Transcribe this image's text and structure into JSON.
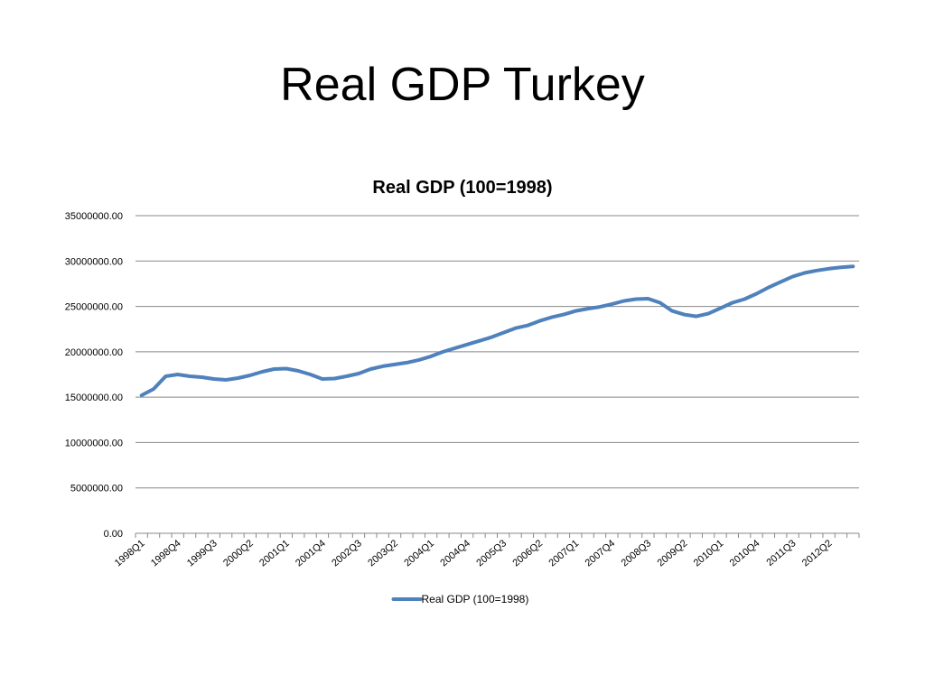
{
  "slide": {
    "title": "Real GDP Turkey"
  },
  "colors": {
    "series": "#4f81bd",
    "grid": "#888888",
    "axis": "#888888"
  },
  "chart_data": {
    "type": "line",
    "title": "Real GDP (100=1998)",
    "xlabel": "",
    "ylabel": "",
    "ylim": [
      0,
      35000000
    ],
    "yticks": [
      0,
      5000000,
      10000000,
      15000000,
      20000000,
      25000000,
      30000000,
      35000000
    ],
    "ytick_labels": [
      "0.00",
      "5000000.00",
      "10000000.00",
      "15000000.00",
      "20000000.00",
      "25000000.00",
      "30000000.00",
      "35000000.00"
    ],
    "grid": true,
    "legend": "bottom",
    "categories": [
      "1998Q1",
      "1998Q2",
      "1998Q3",
      "1998Q4",
      "1999Q1",
      "1999Q2",
      "1999Q3",
      "1999Q4",
      "2000Q1",
      "2000Q2",
      "2000Q3",
      "2000Q4",
      "2001Q1",
      "2001Q2",
      "2001Q3",
      "2001Q4",
      "2002Q1",
      "2002Q2",
      "2002Q3",
      "2002Q4",
      "2003Q1",
      "2003Q2",
      "2003Q3",
      "2003Q4",
      "2004Q1",
      "2004Q2",
      "2004Q3",
      "2004Q4",
      "2005Q1",
      "2005Q2",
      "2005Q3",
      "2005Q4",
      "2006Q1",
      "2006Q2",
      "2006Q3",
      "2006Q4",
      "2007Q1",
      "2007Q2",
      "2007Q3",
      "2007Q4",
      "2008Q1",
      "2008Q2",
      "2008Q3",
      "2008Q4",
      "2009Q1",
      "2009Q2",
      "2009Q3",
      "2009Q4",
      "2010Q1",
      "2010Q2",
      "2010Q3",
      "2010Q4",
      "2011Q1",
      "2011Q2",
      "2011Q3",
      "2011Q4",
      "2012Q1",
      "2012Q2",
      "2012Q3",
      "2012Q4"
    ],
    "xtick_labels": [
      "1998Q1",
      "1998Q4",
      "1999Q3",
      "2000Q2",
      "2001Q1",
      "2001Q4",
      "2002Q3",
      "2003Q2",
      "2004Q1",
      "2004Q4",
      "2005Q3",
      "2006Q2",
      "2007Q1",
      "2007Q4",
      "2008Q3",
      "2009Q2",
      "2010Q1",
      "2010Q4",
      "2011Q3",
      "2012Q2"
    ],
    "series": [
      {
        "name": "Real GDP (100=1998)",
        "values": [
          15200000,
          15900000,
          17300000,
          17500000,
          17300000,
          17200000,
          17000000,
          16900000,
          17100000,
          17400000,
          17800000,
          18100000,
          18150000,
          17900000,
          17500000,
          17000000,
          17050000,
          17300000,
          17600000,
          18100000,
          18400000,
          18600000,
          18800000,
          19100000,
          19500000,
          20000000,
          20400000,
          20800000,
          21200000,
          21600000,
          22100000,
          22600000,
          22900000,
          23400000,
          23800000,
          24100000,
          24500000,
          24750000,
          24950000,
          25250000,
          25600000,
          25800000,
          25850000,
          25400000,
          24500000,
          24100000,
          23900000,
          24200000,
          24800000,
          25400000,
          25800000,
          26400000,
          27100000,
          27700000,
          28300000,
          28700000,
          28950000,
          29150000,
          29300000,
          29400000
        ]
      }
    ]
  }
}
